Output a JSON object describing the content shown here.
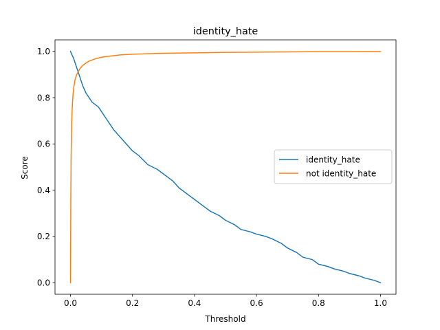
{
  "chart_data": {
    "type": "line",
    "title": "identity_hate",
    "xlabel": "Threshold",
    "ylabel": "Score",
    "xlim": [
      -0.05,
      1.05
    ],
    "ylim": [
      -0.05,
      1.05
    ],
    "xticks": [
      0.0,
      0.2,
      0.4,
      0.6,
      0.8,
      1.0
    ],
    "yticks": [
      0.0,
      0.2,
      0.4,
      0.6,
      0.8,
      1.0
    ],
    "grid": false,
    "legend_position": "center-right",
    "series": [
      {
        "name": "identity_hate",
        "color": "#1f77b4",
        "x": [
          0.0,
          0.01,
          0.02,
          0.03,
          0.04,
          0.05,
          0.06,
          0.07,
          0.08,
          0.09,
          0.1,
          0.12,
          0.14,
          0.16,
          0.18,
          0.2,
          0.22,
          0.25,
          0.28,
          0.3,
          0.33,
          0.35,
          0.38,
          0.4,
          0.43,
          0.45,
          0.48,
          0.5,
          0.53,
          0.55,
          0.58,
          0.6,
          0.63,
          0.65,
          0.68,
          0.7,
          0.73,
          0.75,
          0.78,
          0.8,
          0.83,
          0.85,
          0.88,
          0.9,
          0.93,
          0.95,
          0.98,
          1.0
        ],
        "values": [
          1.0,
          0.97,
          0.93,
          0.89,
          0.85,
          0.82,
          0.8,
          0.78,
          0.77,
          0.76,
          0.74,
          0.7,
          0.66,
          0.63,
          0.6,
          0.57,
          0.55,
          0.51,
          0.49,
          0.47,
          0.44,
          0.41,
          0.38,
          0.36,
          0.33,
          0.31,
          0.29,
          0.27,
          0.25,
          0.23,
          0.22,
          0.21,
          0.2,
          0.19,
          0.17,
          0.15,
          0.13,
          0.11,
          0.1,
          0.08,
          0.07,
          0.06,
          0.05,
          0.04,
          0.03,
          0.02,
          0.01,
          0.0
        ]
      },
      {
        "name": "not identity_hate",
        "color": "#ff7f0e",
        "x": [
          0.0,
          0.001,
          0.002,
          0.004,
          0.006,
          0.008,
          0.01,
          0.015,
          0.02,
          0.03,
          0.04,
          0.05,
          0.06,
          0.08,
          0.1,
          0.13,
          0.16,
          0.2,
          0.25,
          0.3,
          0.4,
          0.5,
          0.6,
          0.7,
          0.8,
          0.9,
          1.0
        ],
        "values": [
          0.0,
          0.35,
          0.55,
          0.7,
          0.77,
          0.81,
          0.84,
          0.88,
          0.9,
          0.925,
          0.94,
          0.95,
          0.958,
          0.968,
          0.975,
          0.98,
          0.985,
          0.988,
          0.99,
          0.992,
          0.994,
          0.996,
          0.997,
          0.998,
          0.999,
          0.999,
          1.0
        ]
      }
    ]
  }
}
